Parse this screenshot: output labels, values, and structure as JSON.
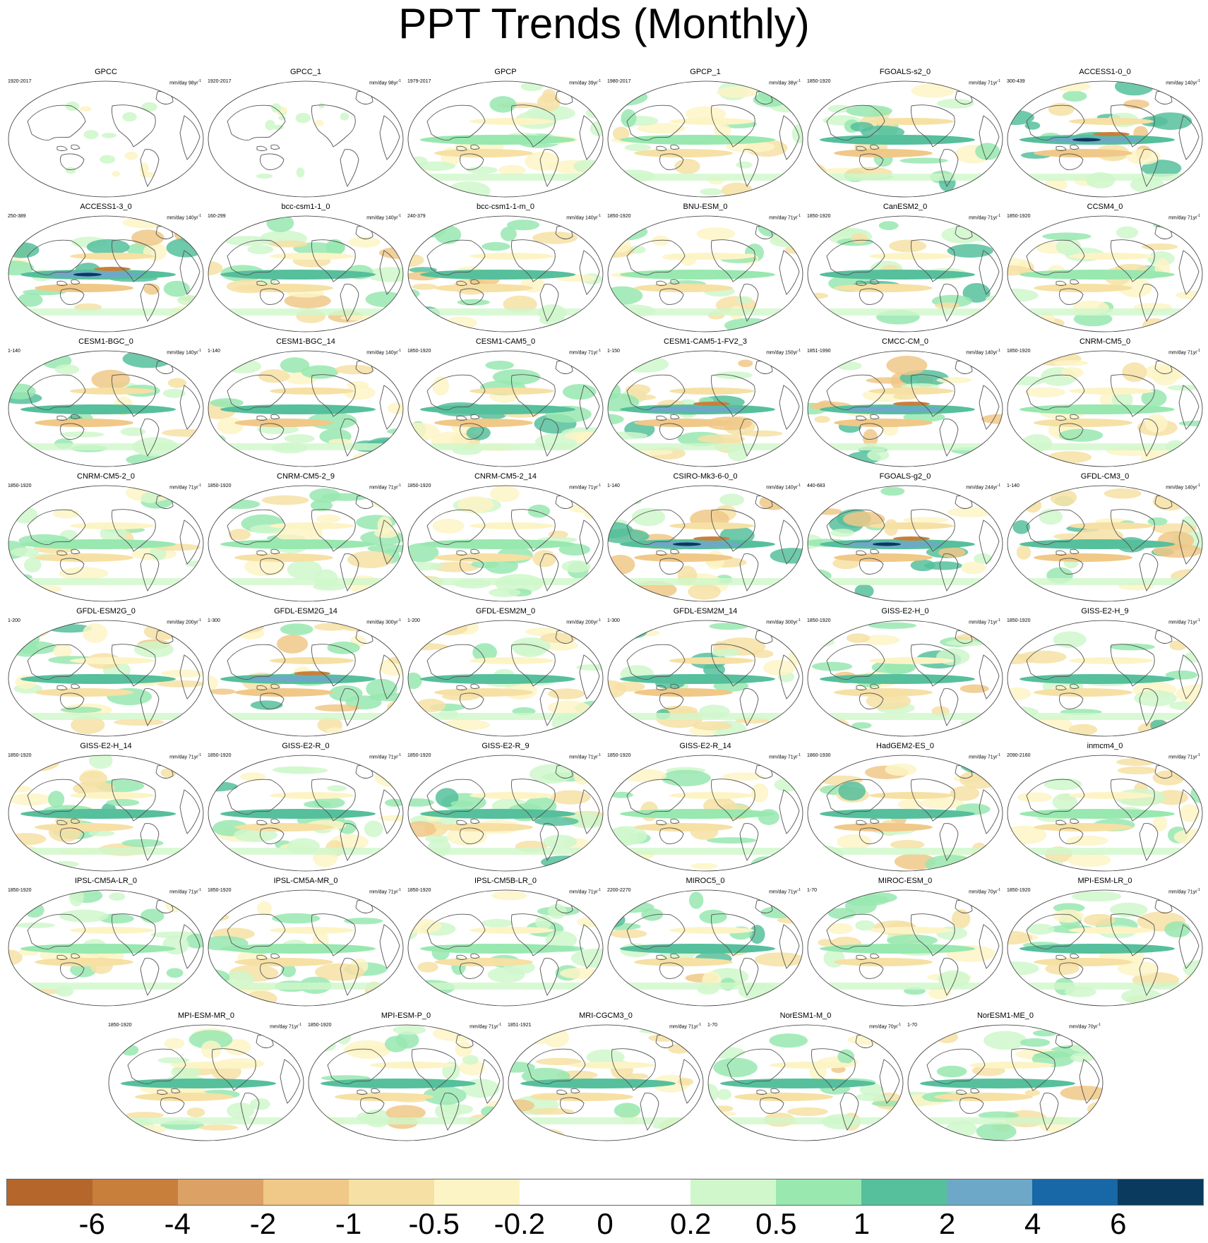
{
  "title": "PPT Trends (Monthly)",
  "palette": [
    "#b5662a",
    "#c97f3c",
    "#dca165",
    "#f0c887",
    "#f6e0a4",
    "#fdf4c6",
    "#ffffff",
    "#ffffff",
    "#cff7cb",
    "#98e8b0",
    "#56bf9c",
    "#6ea8c8",
    "#1867a6",
    "#0a3a5e"
  ],
  "colorbar_levels": [
    "-6",
    "-4",
    "-2",
    "-1",
    "-0.5",
    "-0.2",
    "0",
    "0.2",
    "0.5",
    "1",
    "2",
    "4",
    "6"
  ],
  "panels": [
    {
      "name": "GPCC",
      "years": "1920-2017",
      "units": "mm/day 98yr",
      "ocean_missing": true,
      "strength": 0.6
    },
    {
      "name": "GPCC_1",
      "years": "1920-2017",
      "units": "mm/day 98yr",
      "ocean_missing": true,
      "strength": 0.6
    },
    {
      "name": "GPCP",
      "years": "1979-2017",
      "units": "mm/day 39yr",
      "strength": 0.9
    },
    {
      "name": "GPCP_1",
      "years": "1980-2017",
      "units": "mm/day 38yr",
      "strength": 0.9
    },
    {
      "name": "FGOALS-s2_0",
      "years": "1850-1920",
      "units": "mm/day 71yr",
      "strength": 1.6
    },
    {
      "name": "ACCESS1-0_0",
      "years": "300-439",
      "units": "mm/day 140yr",
      "strength": 2.2
    },
    {
      "name": "ACCESS1-3_0",
      "years": "250-389",
      "units": "mm/day 140yr",
      "strength": 2.3
    },
    {
      "name": "bcc-csm1-1_0",
      "years": "160-299",
      "units": "mm/day 140yr",
      "strength": 1.3
    },
    {
      "name": "bcc-csm1-1-m_0",
      "years": "240-379",
      "units": "mm/day 140yr",
      "strength": 1.4
    },
    {
      "name": "BNU-ESM_0",
      "years": "1850-1920",
      "units": "mm/day 71yr",
      "strength": 1.0
    },
    {
      "name": "CanESM2_0",
      "years": "1850-1920",
      "units": "mm/day 71yr",
      "strength": 1.1
    },
    {
      "name": "CCSM4_0",
      "years": "1850-1920",
      "units": "mm/day 71yr",
      "strength": 0.9
    },
    {
      "name": "CESM1-BGC_0",
      "years": "1-140",
      "units": "mm/day 140yr",
      "strength": 1.6
    },
    {
      "name": "CESM1-BGC_14",
      "years": "1-140",
      "units": "mm/day 140yr",
      "strength": 1.6
    },
    {
      "name": "CESM1-CAM5_0",
      "years": "1850-1920",
      "units": "mm/day 71yr",
      "strength": 1.6
    },
    {
      "name": "CESM1-CAM5-1-FV2_3",
      "years": "1-150",
      "units": "mm/day 150yr",
      "strength": 1.8
    },
    {
      "name": "CMCC-CM_0",
      "years": "1851-1990",
      "units": "mm/day 140yr",
      "strength": 2.0
    },
    {
      "name": "CNRM-CM5_0",
      "years": "1850-1920",
      "units": "mm/day 71yr",
      "strength": 0.7
    },
    {
      "name": "CNRM-CM5-2_0",
      "years": "1850-1920",
      "units": "mm/day 71yr",
      "strength": 0.7
    },
    {
      "name": "CNRM-CM5-2_9",
      "years": "1850-1920",
      "units": "mm/day 71yr",
      "strength": 0.8
    },
    {
      "name": "CNRM-CM5-2_14",
      "years": "1850-1920",
      "units": "mm/day 71yr",
      "strength": 0.8
    },
    {
      "name": "CSIRO-Mk3-6-0_0",
      "years": "1-140",
      "units": "mm/day 140yr",
      "strength": 2.4
    },
    {
      "name": "FGOALS-g2_0",
      "years": "440-683",
      "units": "mm/day 244yr",
      "strength": 2.2
    },
    {
      "name": "GFDL-CM3_0",
      "years": "1-140",
      "units": "mm/day 140yr",
      "strength": 1.7
    },
    {
      "name": "GFDL-ESM2G_0",
      "years": "1-200",
      "units": "mm/day 200yr",
      "strength": 1.1
    },
    {
      "name": "GFDL-ESM2G_14",
      "years": "1-300",
      "units": "mm/day 300yr",
      "strength": 1.8
    },
    {
      "name": "GFDL-ESM2M_0",
      "years": "1-200",
      "units": "mm/day 200yr",
      "strength": 1.1
    },
    {
      "name": "GFDL-ESM2M_14",
      "years": "1-300",
      "units": "mm/day 300yr",
      "strength": 1.7
    },
    {
      "name": "GISS-E2-H_0",
      "years": "1850-1920",
      "units": "mm/day 71yr",
      "strength": 1.1
    },
    {
      "name": "GISS-E2-H_9",
      "years": "1850-1920",
      "units": "mm/day 71yr",
      "strength": 1.1
    },
    {
      "name": "GISS-E2-H_14",
      "years": "1850-1920",
      "units": "mm/day 71yr",
      "strength": 1.2
    },
    {
      "name": "GISS-E2-R_0",
      "years": "1850-1920",
      "units": "mm/day 71yr",
      "strength": 1.3
    },
    {
      "name": "GISS-E2-R_9",
      "years": "1850-1920",
      "units": "mm/day 71yr",
      "strength": 1.2
    },
    {
      "name": "GISS-E2-R_14",
      "years": "1850-1920",
      "units": "mm/day 71yr",
      "strength": 1.0
    },
    {
      "name": "HadGEM2-ES_0",
      "years": "1860-1930",
      "units": "mm/day 71yr",
      "strength": 1.6
    },
    {
      "name": "inmcm4_0",
      "years": "2090-2160",
      "units": "mm/day 71yr",
      "strength": 0.7
    },
    {
      "name": "IPSL-CM5A-LR_0",
      "years": "1850-1920",
      "units": "mm/day 71yr",
      "strength": 1.0
    },
    {
      "name": "IPSL-CM5A-MR_0",
      "years": "1850-1920",
      "units": "mm/day 71yr",
      "strength": 1.0
    },
    {
      "name": "IPSL-CM5B-LR_0",
      "years": "1850-1920",
      "units": "mm/day 71yr",
      "strength": 0.9
    },
    {
      "name": "MIROC5_0",
      "years": "2200-2270",
      "units": "mm/day 71yr",
      "strength": 1.2
    },
    {
      "name": "MIROC-ESM_0",
      "years": "1-70",
      "units": "mm/day 70yr",
      "strength": 1.0
    },
    {
      "name": "MPI-ESM-LR_0",
      "years": "1850-1920",
      "units": "mm/day 71yr",
      "strength": 1.1
    },
    {
      "name": "MPI-ESM-MR_0",
      "years": "1850-1920",
      "units": "mm/day 71yr",
      "strength": 1.1
    },
    {
      "name": "MPI-ESM-P_0",
      "years": "1850-1920",
      "units": "mm/day 71yr",
      "strength": 1.1
    },
    {
      "name": "MRI-CGCM3_0",
      "years": "1851-1921",
      "units": "mm/day 71yr",
      "strength": 1.2
    },
    {
      "name": "NorESM1-M_0",
      "years": "1-70",
      "units": "mm/day 70yr",
      "strength": 1.1
    },
    {
      "name": "NorESM1-ME_0",
      "years": "1-70",
      "units": "mm/day 70yr",
      "strength": 1.1
    }
  ]
}
